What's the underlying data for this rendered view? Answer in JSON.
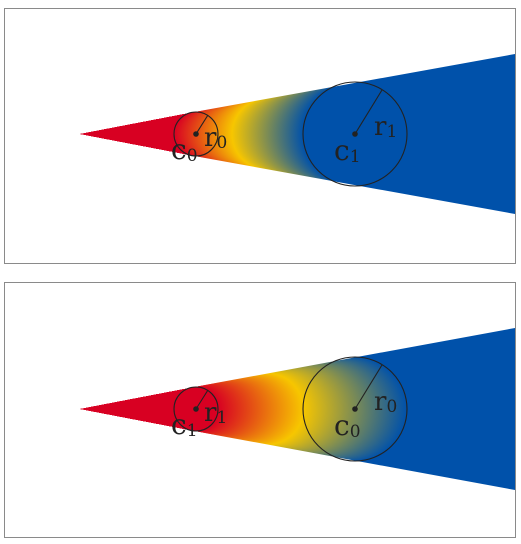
{
  "colors": {
    "start": "#d80022",
    "mid": "#f7c600",
    "end": "#0051aa"
  },
  "panels": [
    {
      "id": "top",
      "small_circle": {
        "center_label": "c",
        "center_sub": "0",
        "radius_label": "r",
        "radius_sub": "0"
      },
      "large_circle": {
        "center_label": "c",
        "center_sub": "1",
        "radius_label": "r",
        "radius_sub": "1"
      }
    },
    {
      "id": "bottom",
      "small_circle": {
        "center_label": "c",
        "center_sub": "1",
        "radius_label": "r",
        "radius_sub": "1"
      },
      "large_circle": {
        "center_label": "c",
        "center_sub": "0",
        "radius_label": "r",
        "radius_sub": "0"
      }
    }
  ]
}
